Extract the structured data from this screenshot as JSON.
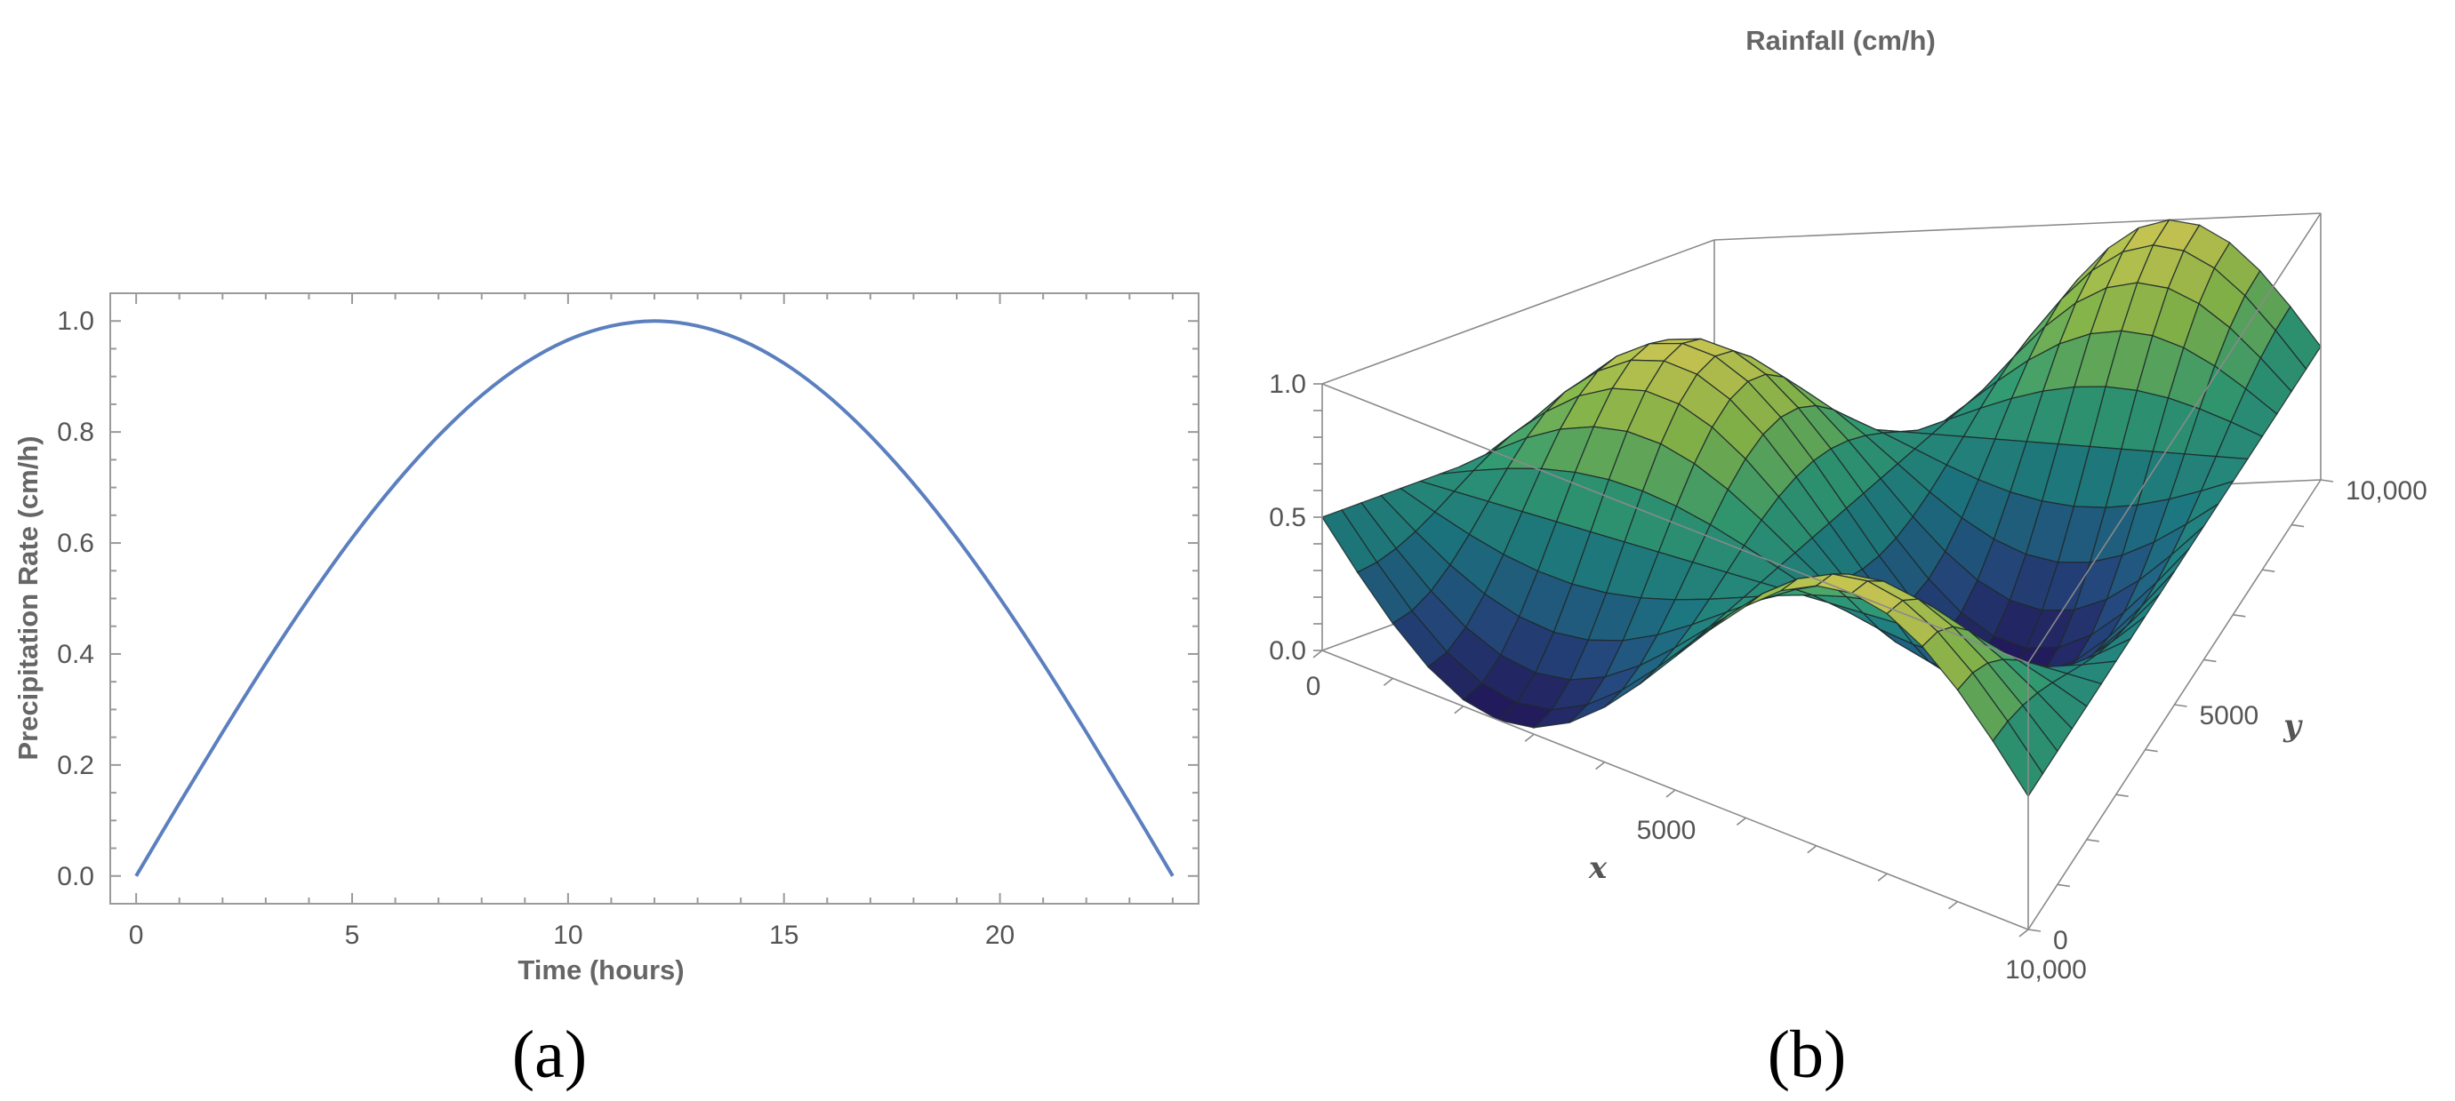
{
  "chart_data": [
    {
      "type": "line",
      "panel_label": "(a)",
      "xlabel": "Time (hours)",
      "ylabel": "Precipitation Rate (cm/h)",
      "xlim": [
        -0.6,
        24.6
      ],
      "ylim": [
        -0.05,
        1.05
      ],
      "xticks": [
        0,
        5,
        10,
        15,
        20
      ],
      "xtick_labels": [
        "0",
        "5",
        "10",
        "15",
        "20"
      ],
      "yticks": [
        0.0,
        0.2,
        0.4,
        0.6,
        0.8,
        1.0
      ],
      "ytick_labels": [
        "0.0",
        "0.2",
        "0.4",
        "0.6",
        "0.8",
        "1.0"
      ],
      "grid": false,
      "line_color": "#5b7fbf",
      "series": [
        {
          "x": [
            0,
            1,
            2,
            3,
            4,
            5,
            6,
            7,
            8,
            9,
            10,
            11,
            12,
            13,
            14,
            15,
            16,
            17,
            18,
            19,
            20,
            21,
            22,
            23,
            24
          ],
          "values": [
            0.0,
            0.131,
            0.259,
            0.383,
            0.5,
            0.609,
            0.707,
            0.793,
            0.866,
            0.924,
            0.966,
            0.991,
            1.0,
            0.991,
            0.966,
            0.924,
            0.866,
            0.793,
            0.707,
            0.609,
            0.5,
            0.383,
            0.259,
            0.131,
            0.0
          ]
        }
      ]
    },
    {
      "type": "surface",
      "panel_label": "(b)",
      "title": "Rainfall (cm/h)",
      "xlabel": "x",
      "ylabel": "y",
      "xlim": [
        0,
        10000
      ],
      "ylim": [
        0,
        10000
      ],
      "zlim": [
        0,
        1
      ],
      "xtick_labels": [
        "0",
        "5000",
        "10,000"
      ],
      "ytick_labels": [
        "0",
        "5000",
        "10,000"
      ],
      "ztick_labels": [
        "0.0",
        "0.5",
        "1.0"
      ],
      "grid_divisions": 20,
      "colormap": [
        "#2a1a6a",
        "#2c5a9a",
        "#22909c",
        "#3cbc8a",
        "#a0dc5a",
        "#f6f062"
      ],
      "mesh_color": "#1f2a2a"
    }
  ]
}
